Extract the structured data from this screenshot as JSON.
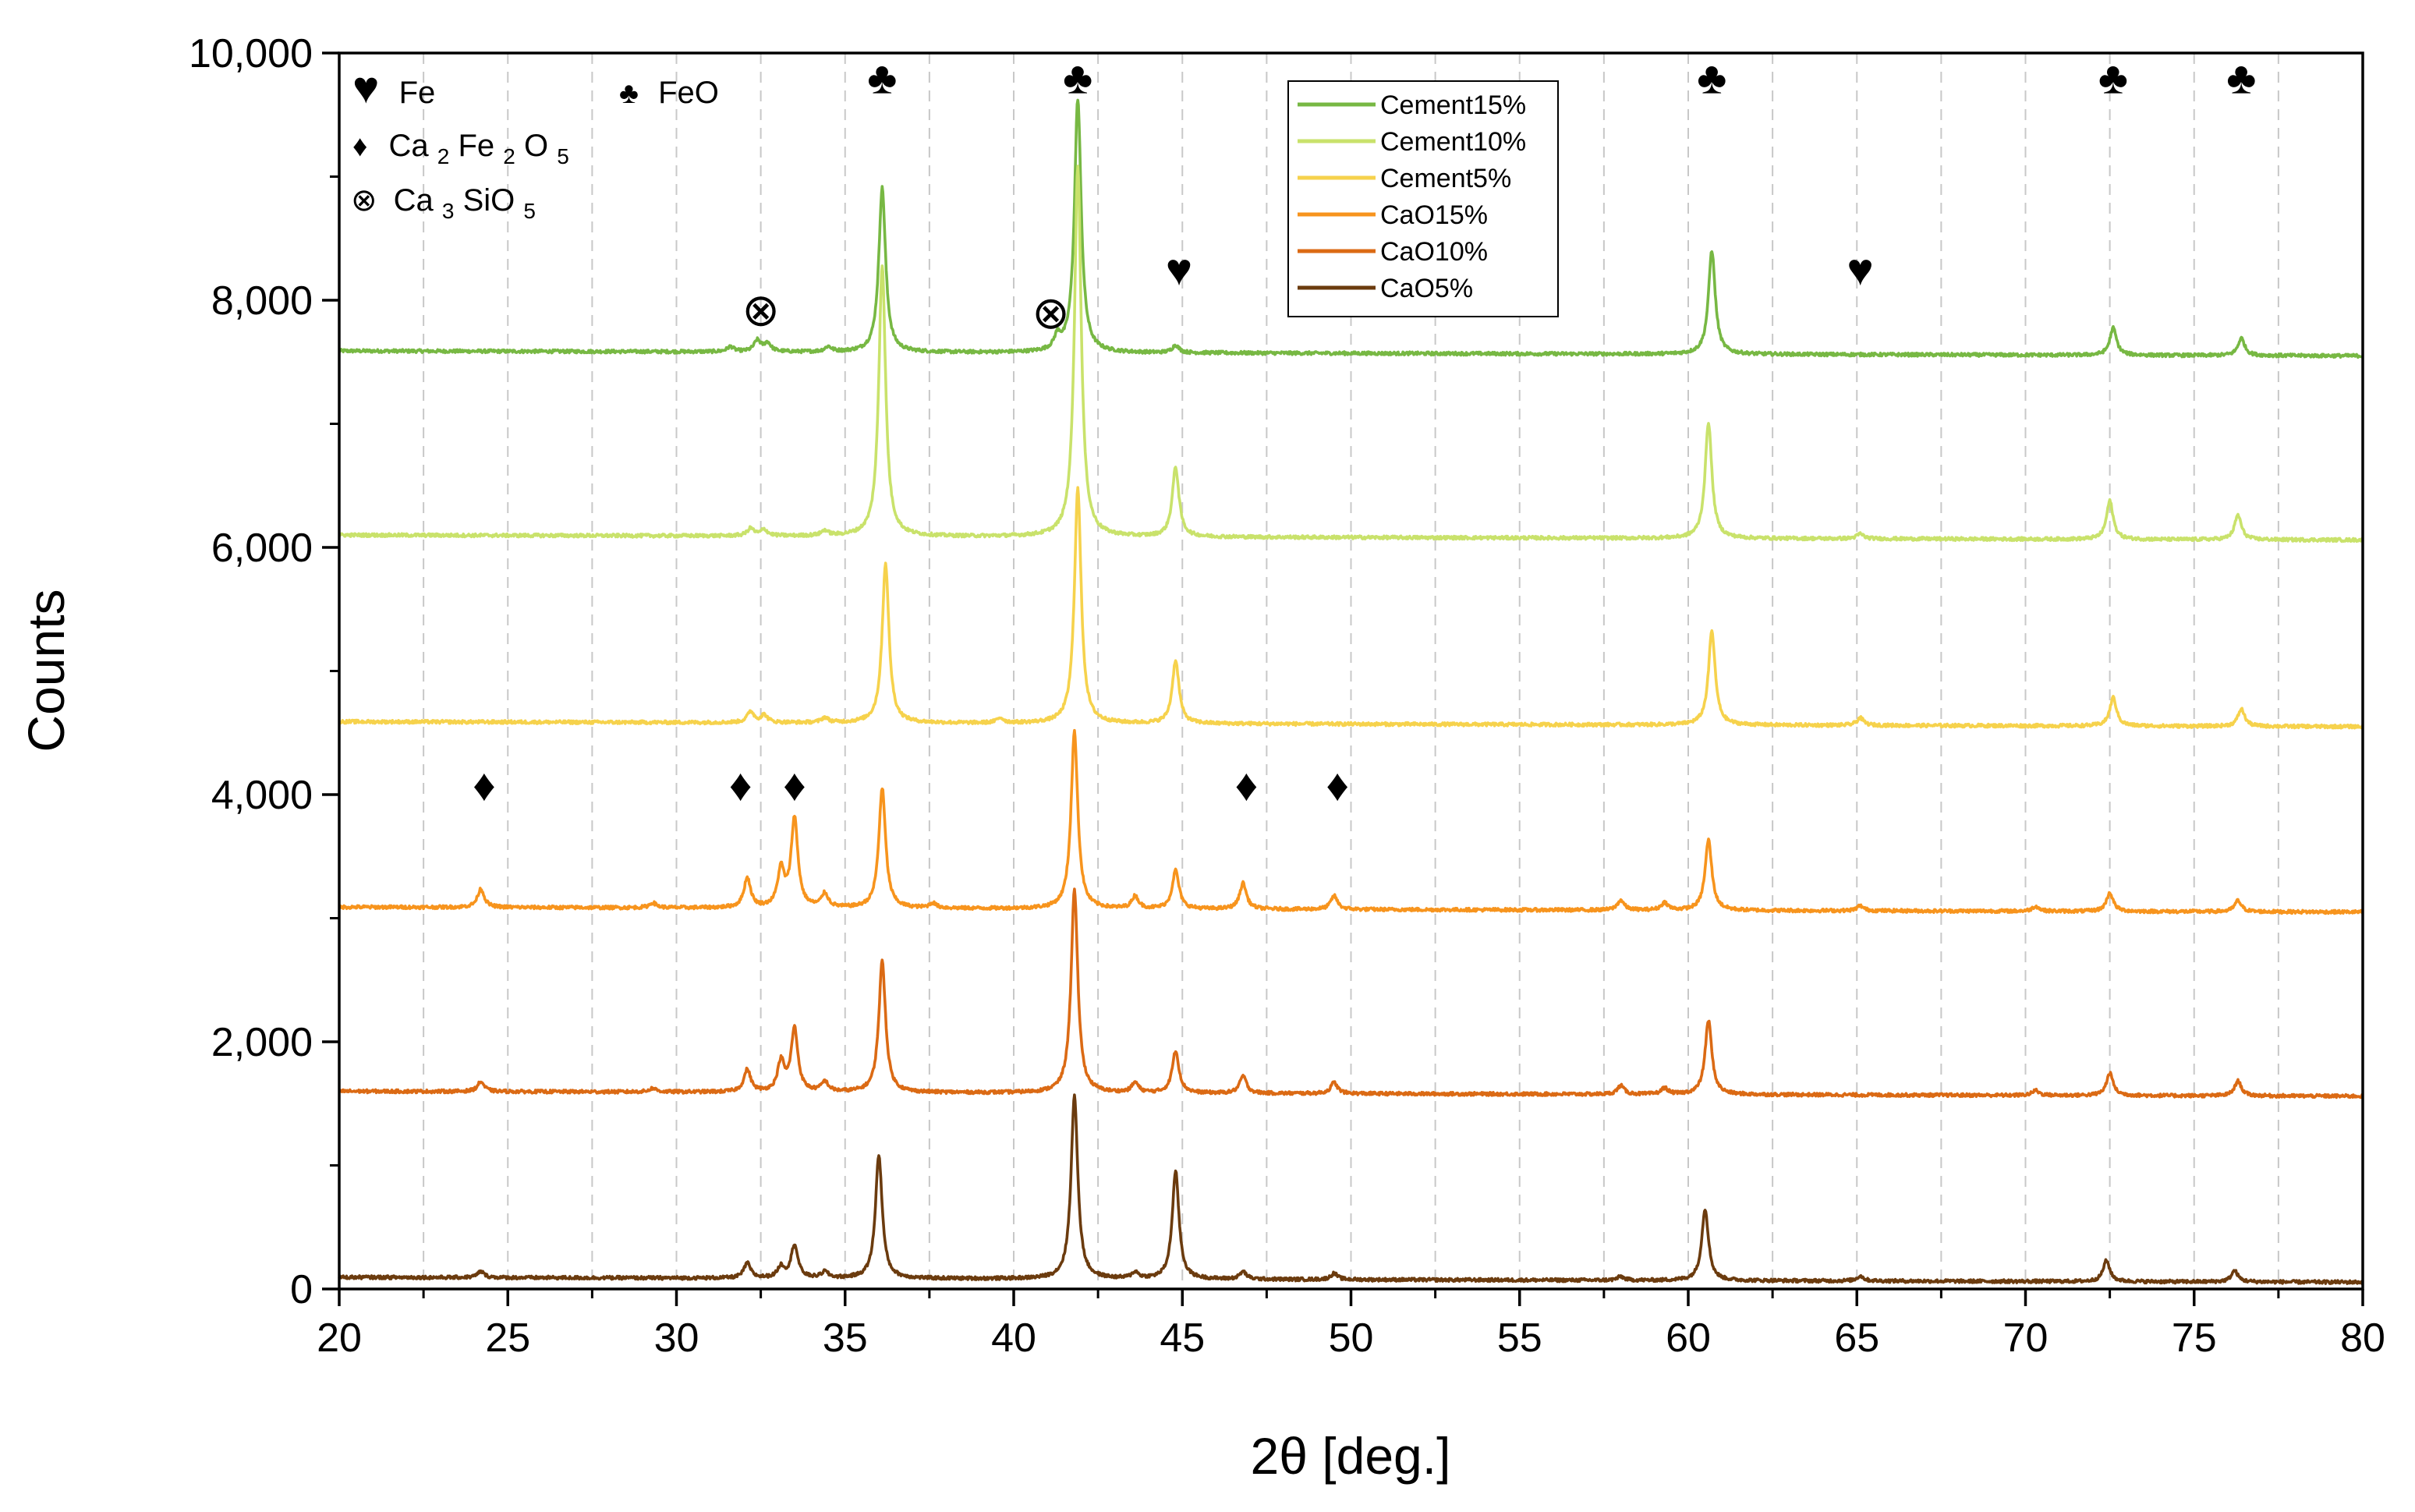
{
  "chart_data": {
    "type": "line",
    "xlabel": "2θ [deg.]",
    "ylabel": "Counts",
    "xlim": [
      20,
      80
    ],
    "ylim": [
      0,
      10000
    ],
    "x_ticks": [
      20,
      25,
      30,
      35,
      40,
      45,
      50,
      55,
      60,
      65,
      70,
      75,
      80
    ],
    "y_ticks": [
      0,
      2000,
      4000,
      6000,
      8000,
      10000
    ],
    "y_tick_labels": [
      "0",
      "2,000",
      "4,000",
      "6,000",
      "8,000",
      "10,000"
    ],
    "grid": "vertical dashed every 2.5°",
    "series": [
      {
        "name": "Cement15%",
        "color": "#77b843",
        "baseline": 7550,
        "peaks": [
          [
            31.6,
            40
          ],
          [
            32.4,
            90
          ],
          [
            32.7,
            70
          ],
          [
            34.5,
            40
          ],
          [
            36.1,
            1330
          ],
          [
            41.3,
            110
          ],
          [
            41.9,
            2050
          ],
          [
            44.8,
            60
          ],
          [
            60.7,
            840
          ],
          [
            72.6,
            220
          ],
          [
            76.4,
            140
          ]
        ]
      },
      {
        "name": "Cement10%",
        "color": "#c9e26b",
        "baseline": 6060,
        "peaks": [
          [
            32.2,
            60
          ],
          [
            32.6,
            50
          ],
          [
            34.4,
            40
          ],
          [
            36.1,
            2200
          ],
          [
            41.9,
            3000
          ],
          [
            44.8,
            560
          ],
          [
            60.6,
            940
          ],
          [
            65.1,
            40
          ],
          [
            72.5,
            310
          ],
          [
            76.3,
            200
          ]
        ]
      },
      {
        "name": "Cement5%",
        "color": "#f6d24c",
        "baseline": 4550,
        "peaks": [
          [
            32.2,
            90
          ],
          [
            32.6,
            60
          ],
          [
            34.4,
            40
          ],
          [
            36.2,
            1290
          ],
          [
            39.6,
            40
          ],
          [
            41.9,
            1900
          ],
          [
            44.8,
            510
          ],
          [
            60.7,
            760
          ],
          [
            65.1,
            60
          ],
          [
            72.6,
            230
          ],
          [
            76.4,
            140
          ]
        ]
      },
      {
        "name": "CaO15%",
        "color": "#f7941d",
        "baseline": 3050,
        "peaks": [
          [
            24.2,
            150
          ],
          [
            29.3,
            40
          ],
          [
            32.1,
            240
          ],
          [
            33.1,
            300
          ],
          [
            33.5,
            720
          ],
          [
            34.4,
            110
          ],
          [
            36.1,
            970
          ],
          [
            37.6,
            40
          ],
          [
            41.8,
            1430
          ],
          [
            43.6,
            100
          ],
          [
            44.8,
            310
          ],
          [
            46.8,
            210
          ],
          [
            49.5,
            110
          ],
          [
            58.0,
            80
          ],
          [
            59.3,
            60
          ],
          [
            60.6,
            570
          ],
          [
            65.1,
            40
          ],
          [
            70.3,
            40
          ],
          [
            72.5,
            150
          ],
          [
            76.3,
            90
          ]
        ]
      },
      {
        "name": "CaO10%",
        "color": "#db6a14",
        "baseline": 1560,
        "peaks": [
          [
            24.2,
            80
          ],
          [
            29.3,
            30
          ],
          [
            32.1,
            180
          ],
          [
            33.1,
            240
          ],
          [
            33.5,
            510
          ],
          [
            34.4,
            80
          ],
          [
            36.1,
            1060
          ],
          [
            41.8,
            1640
          ],
          [
            43.6,
            80
          ],
          [
            44.8,
            340
          ],
          [
            46.8,
            140
          ],
          [
            49.5,
            90
          ],
          [
            58.0,
            70
          ],
          [
            59.3,
            50
          ],
          [
            60.6,
            600
          ],
          [
            70.3,
            40
          ],
          [
            72.5,
            180
          ],
          [
            76.3,
            120
          ]
        ]
      },
      {
        "name": "CaO5%",
        "color": "#6b3b0e",
        "baseline": 55,
        "peaks": [
          [
            24.2,
            50
          ],
          [
            32.1,
            120
          ],
          [
            33.1,
            90
          ],
          [
            33.5,
            270
          ],
          [
            34.4,
            50
          ],
          [
            36.0,
            1000
          ],
          [
            41.8,
            1480
          ],
          [
            43.6,
            50
          ],
          [
            44.8,
            870
          ],
          [
            46.8,
            60
          ],
          [
            49.5,
            50
          ],
          [
            58.0,
            30
          ],
          [
            60.5,
            580
          ],
          [
            65.1,
            40
          ],
          [
            72.4,
            170
          ],
          [
            76.2,
            90
          ]
        ]
      }
    ],
    "phase_legend": [
      {
        "symbol": "♥",
        "formula": [
          [
            "Fe",
            ""
          ]
        ]
      },
      {
        "symbol": "♦",
        "formula": [
          [
            "Ca",
            "2"
          ],
          [
            "Fe",
            "2"
          ],
          [
            "O",
            "5"
          ]
        ]
      },
      {
        "symbol": "⊗",
        "formula": [
          [
            "Ca",
            "3"
          ],
          [
            "SiO",
            "5"
          ]
        ]
      },
      {
        "symbol": "♣",
        "formula": [
          [
            "FeO",
            ""
          ]
        ]
      }
    ],
    "annotations": [
      {
        "symbol": "♣",
        "x": 36.1,
        "y": 9800
      },
      {
        "symbol": "♣",
        "x": 41.9,
        "y": 9800
      },
      {
        "symbol": "♣",
        "x": 60.7,
        "y": 9800
      },
      {
        "symbol": "♣",
        "x": 72.6,
        "y": 9800
      },
      {
        "symbol": "♣",
        "x": 76.4,
        "y": 9800
      },
      {
        "symbol": "⊗",
        "x": 32.5,
        "y": 7920
      },
      {
        "symbol": "⊗",
        "x": 41.1,
        "y": 7900
      },
      {
        "symbol": "♥",
        "x": 44.9,
        "y": 8250
      },
      {
        "symbol": "♥",
        "x": 65.1,
        "y": 8250
      },
      {
        "symbol": "♦",
        "x": 24.3,
        "y": 4080
      },
      {
        "symbol": "♦",
        "x": 31.9,
        "y": 4080
      },
      {
        "symbol": "♦",
        "x": 33.5,
        "y": 4080
      },
      {
        "symbol": "♦",
        "x": 46.9,
        "y": 4080
      },
      {
        "symbol": "♦",
        "x": 49.6,
        "y": 4080
      }
    ]
  }
}
